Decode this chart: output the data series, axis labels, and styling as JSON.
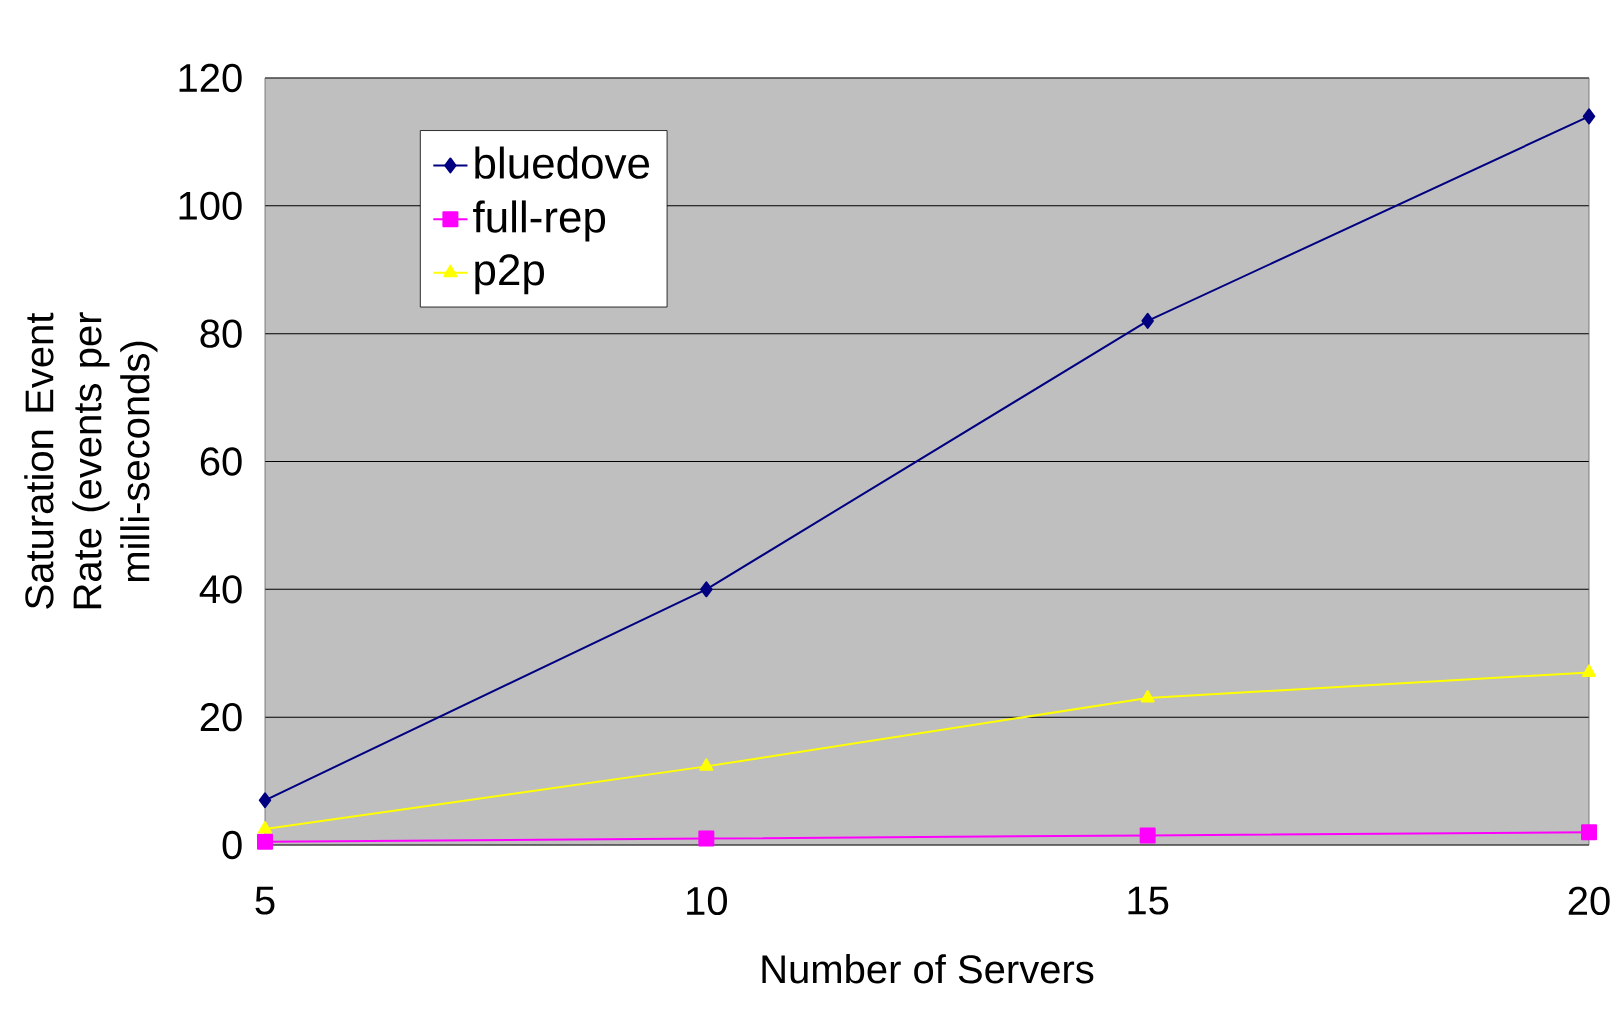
{
  "chart_data": {
    "type": "line",
    "xlabel": "Number of Servers",
    "ylabel": "Saturation Event Rate (events per milli-seconds)",
    "x": [
      5,
      10,
      15,
      20
    ],
    "xlim": [
      5,
      20
    ],
    "xticks": [
      5,
      10,
      15,
      20
    ],
    "ylim": [
      0,
      120
    ],
    "yticks": [
      0,
      20,
      40,
      60,
      80,
      100,
      120
    ],
    "grid": "y",
    "legend": "top left",
    "series": [
      {
        "name": "bluedove",
        "color": "#000080",
        "marker": "diamond",
        "values": [
          7,
          40,
          82,
          114
        ]
      },
      {
        "name": "full-rep",
        "color": "#ff00ff",
        "marker": "square",
        "values": [
          0.5,
          1,
          1.5,
          2
        ]
      },
      {
        "name": "p2p",
        "color": "#ffff00",
        "marker": "triangle",
        "values": [
          2.5,
          12.3,
          23,
          27
        ]
      }
    ]
  }
}
